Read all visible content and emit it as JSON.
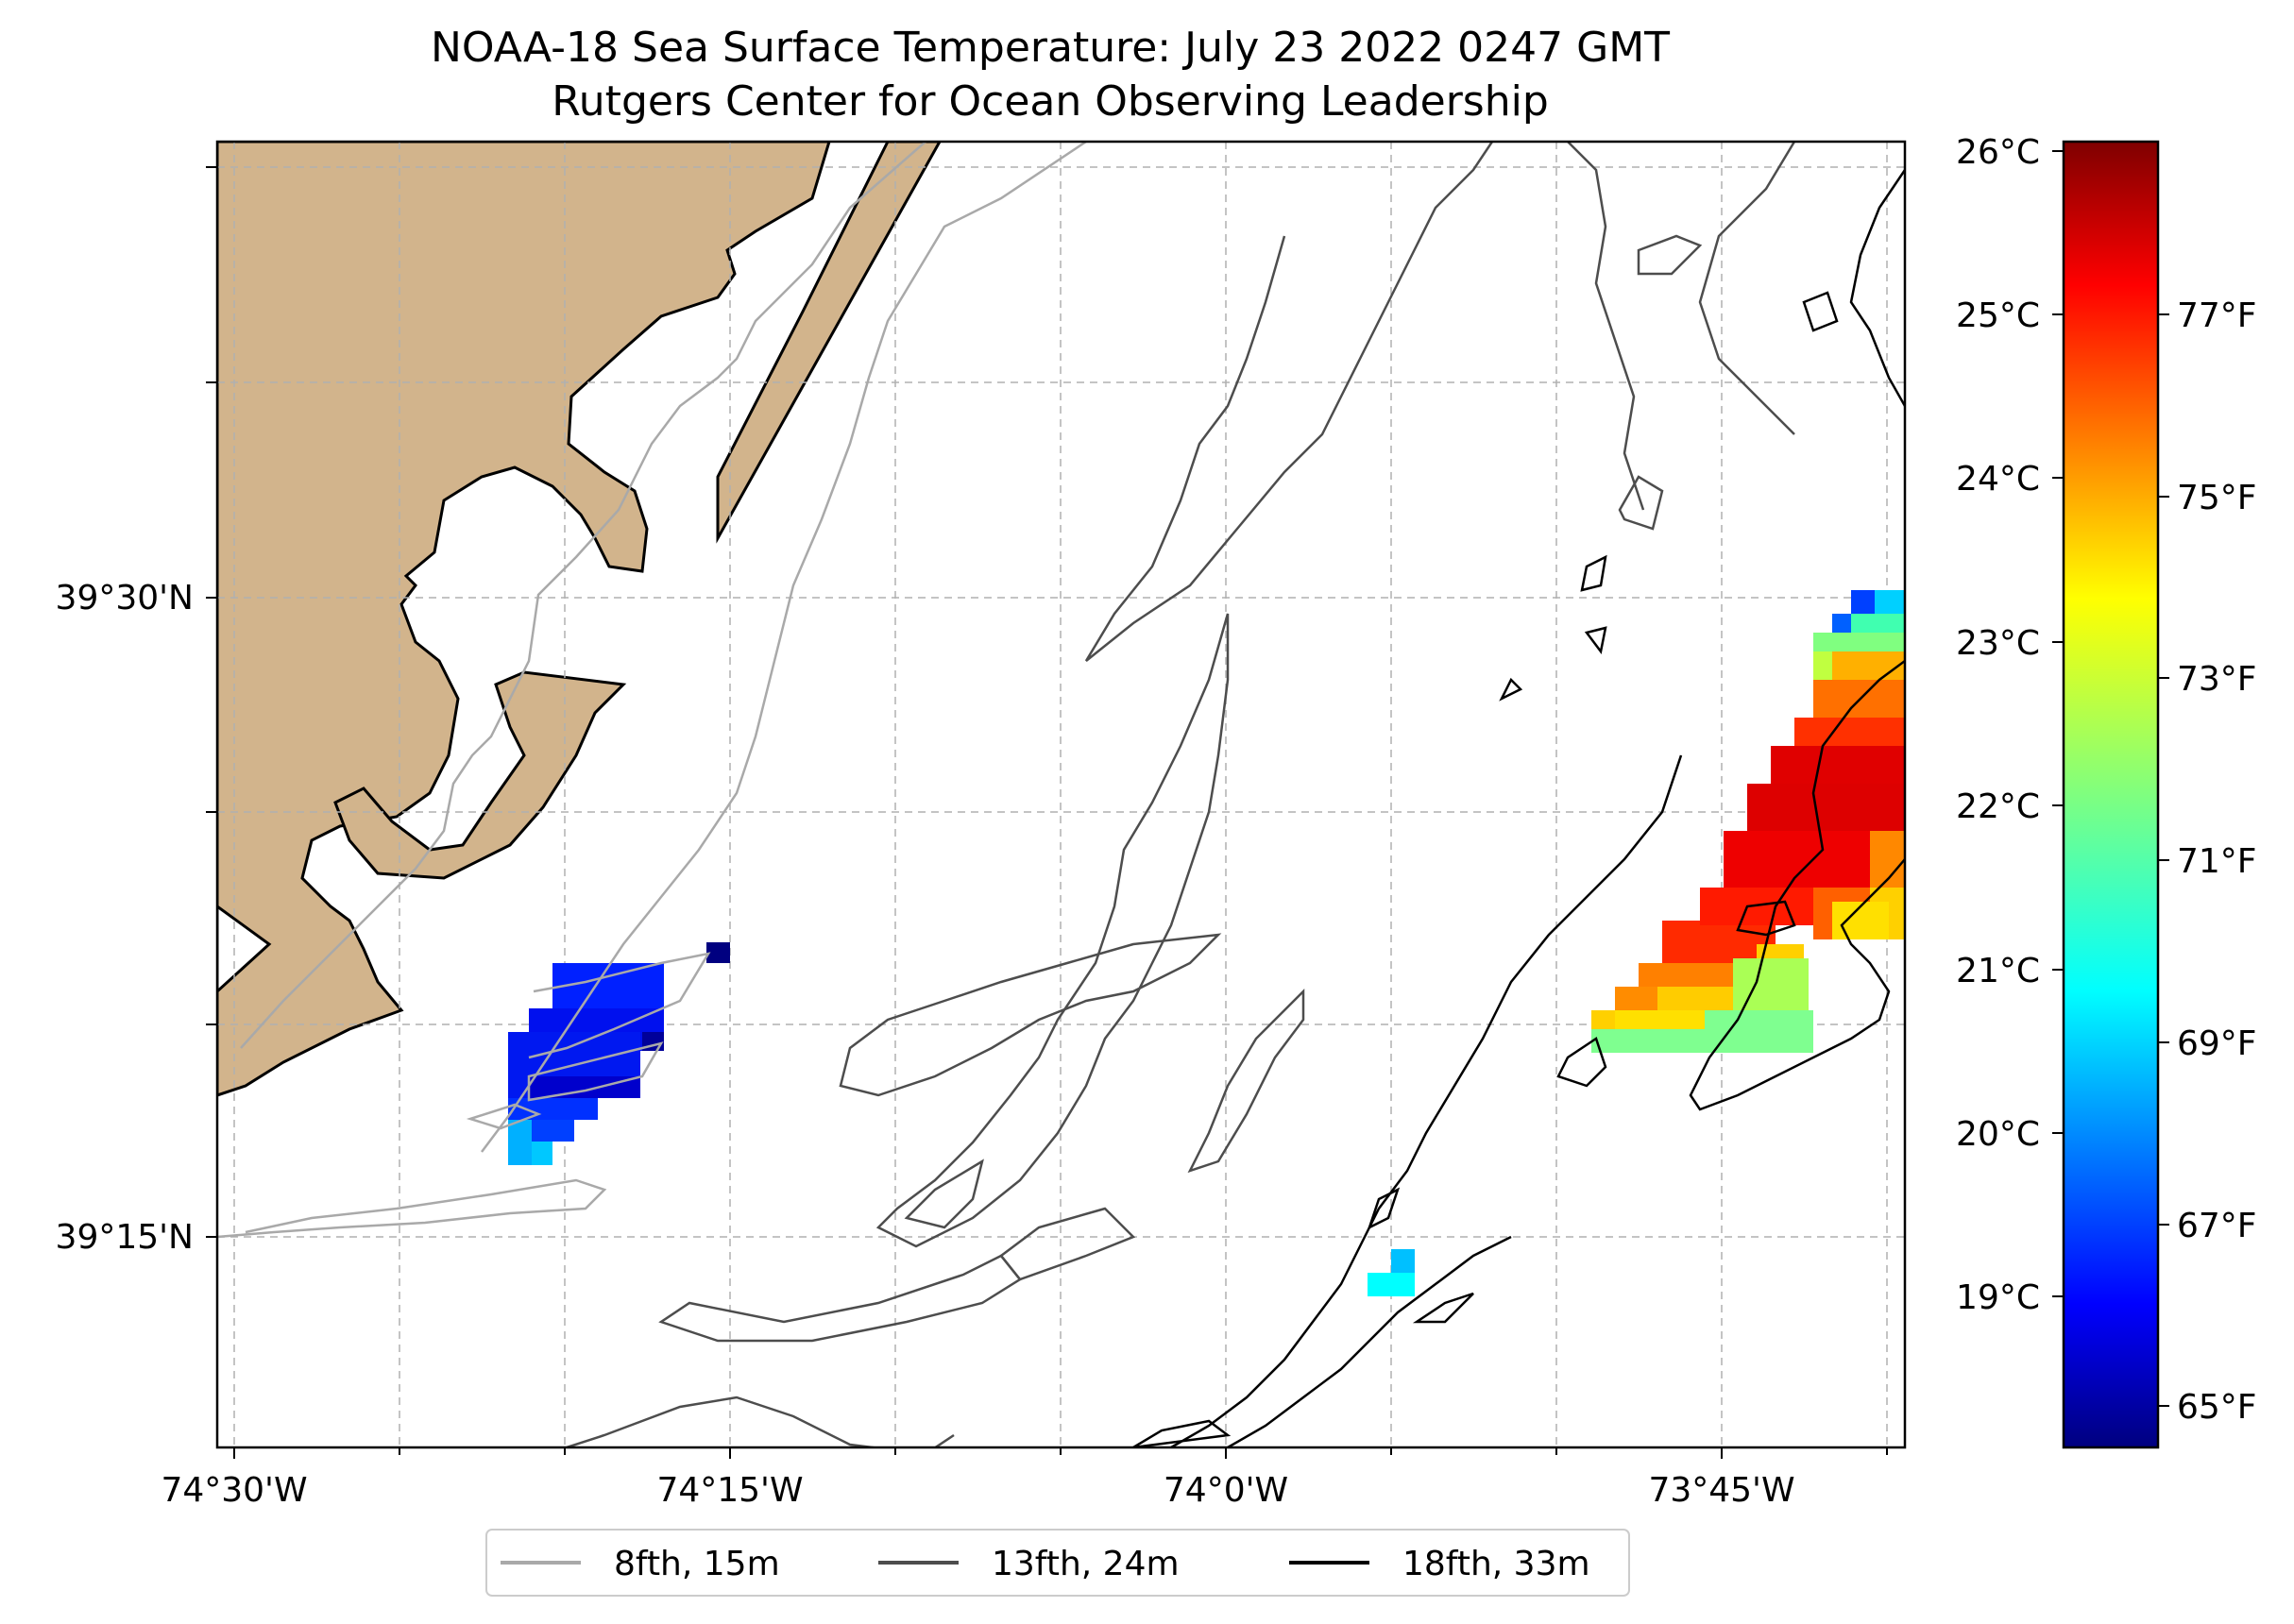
{
  "title": {
    "line1": "NOAA-18 Sea Surface Temperature: July 23 2022 0247 GMT",
    "line2": "Rutgers Center for Ocean Observing Leadership"
  },
  "map": {
    "lon_ticks": [
      "74°30'W",
      "74°15'W",
      "74°0'W",
      "73°45'W"
    ],
    "lat_ticks": [
      "39°30'N",
      "39°15'N"
    ],
    "land_color": "#d2b48c",
    "gridline_color": "#b0b0b0"
  },
  "colorbar": {
    "celsius_ticks": [
      "26°C",
      "25°C",
      "24°C",
      "23°C",
      "22°C",
      "21°C",
      "20°C",
      "19°C"
    ],
    "fahrenheit_ticks": [
      "77°F",
      "75°F",
      "73°F",
      "71°F",
      "69°F",
      "67°F",
      "65°F"
    ],
    "colormap": "jet",
    "range_c": [
      18.0,
      26.0
    ]
  },
  "legend": {
    "items": [
      {
        "label": "8fth, 15m",
        "color": "#a9a9a9"
      },
      {
        "label": "13fth, 24m",
        "color": "#4d4d4d"
      },
      {
        "label": "18fth, 33m",
        "color": "#000000"
      }
    ]
  }
}
